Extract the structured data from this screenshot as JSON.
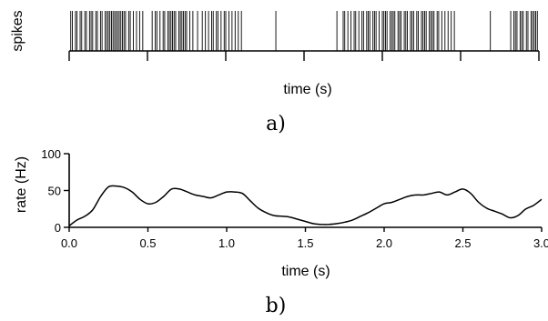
{
  "chart_data": [
    {
      "type": "raster",
      "panel_label": "a)",
      "ylabel": "spikes",
      "xlabel": "time (s)",
      "xlim": [
        0.0,
        3.0
      ],
      "tick_positions": [
        0.0,
        0.5,
        1.0,
        1.5,
        2.0,
        2.5,
        3.0
      ],
      "tick_labels_shown": false,
      "spike_times": [
        0.01,
        0.02,
        0.04,
        0.05,
        0.07,
        0.08,
        0.1,
        0.11,
        0.13,
        0.14,
        0.15,
        0.17,
        0.18,
        0.2,
        0.21,
        0.23,
        0.24,
        0.25,
        0.26,
        0.27,
        0.28,
        0.29,
        0.3,
        0.31,
        0.32,
        0.33,
        0.34,
        0.35,
        0.36,
        0.38,
        0.39,
        0.41,
        0.43,
        0.45,
        0.47,
        0.53,
        0.55,
        0.56,
        0.58,
        0.6,
        0.61,
        0.63,
        0.64,
        0.65,
        0.66,
        0.67,
        0.68,
        0.7,
        0.71,
        0.72,
        0.73,
        0.74,
        0.75,
        0.77,
        0.79,
        0.82,
        0.85,
        0.87,
        0.89,
        0.91,
        0.92,
        0.94,
        0.95,
        0.97,
        0.99,
        1.0,
        1.02,
        1.04,
        1.06,
        1.08,
        1.1,
        1.32,
        1.71,
        1.75,
        1.76,
        1.78,
        1.8,
        1.82,
        1.83,
        1.85,
        1.87,
        1.88,
        1.9,
        1.91,
        1.92,
        1.94,
        1.95,
        1.96,
        1.98,
        2.0,
        2.01,
        2.02,
        2.03,
        2.05,
        2.06,
        2.07,
        2.08,
        2.1,
        2.11,
        2.12,
        2.14,
        2.15,
        2.16,
        2.18,
        2.19,
        2.2,
        2.22,
        2.23,
        2.25,
        2.26,
        2.27,
        2.28,
        2.3,
        2.31,
        2.32,
        2.33,
        2.35,
        2.36,
        2.38,
        2.4,
        2.42,
        2.44,
        2.46,
        2.69,
        2.82,
        2.84,
        2.85,
        2.86,
        2.88,
        2.89,
        2.9,
        2.92,
        2.93,
        2.95,
        2.96,
        2.97,
        2.98,
        2.99
      ]
    },
    {
      "type": "line",
      "panel_label": "b)",
      "ylabel": "rate (Hz)",
      "xlabel": "time (s)",
      "xlim": [
        0.0,
        3.0
      ],
      "ylim": [
        0,
        100
      ],
      "x_ticks": [
        0.0,
        0.5,
        1.0,
        1.5,
        2.0,
        2.5,
        3.0
      ],
      "x_tick_labels": [
        "0.0",
        "0.5",
        "1.0",
        "1.5",
        "2.0",
        "2.5",
        "3.0"
      ],
      "y_ticks": [
        0,
        50,
        100
      ],
      "y_tick_labels": [
        "0",
        "50",
        "100"
      ],
      "series": [
        {
          "x": [
            0.0,
            0.05,
            0.1,
            0.15,
            0.2,
            0.25,
            0.3,
            0.35,
            0.4,
            0.45,
            0.5,
            0.55,
            0.6,
            0.65,
            0.7,
            0.75,
            0.8,
            0.85,
            0.9,
            0.95,
            1.0,
            1.05,
            1.1,
            1.15,
            1.2,
            1.25,
            1.3,
            1.35,
            1.4,
            1.45,
            1.5,
            1.55,
            1.6,
            1.65,
            1.7,
            1.75,
            1.8,
            1.85,
            1.9,
            1.95,
            2.0,
            2.05,
            2.1,
            2.15,
            2.2,
            2.25,
            2.3,
            2.35,
            2.4,
            2.45,
            2.5,
            2.55,
            2.6,
            2.65,
            2.7,
            2.75,
            2.8,
            2.85,
            2.9,
            2.95,
            3.0
          ],
          "values": [
            2,
            10,
            15,
            24,
            42,
            55,
            56,
            54,
            48,
            38,
            32,
            34,
            42,
            52,
            52,
            48,
            44,
            42,
            40,
            44,
            48,
            48,
            46,
            36,
            26,
            20,
            16,
            15,
            14,
            11,
            8,
            5,
            4,
            4,
            5,
            7,
            10,
            15,
            20,
            26,
            32,
            34,
            38,
            42,
            44,
            44,
            46,
            48,
            44,
            48,
            52,
            46,
            34,
            26,
            22,
            18,
            13,
            16,
            25,
            30,
            38
          ]
        }
      ]
    }
  ]
}
